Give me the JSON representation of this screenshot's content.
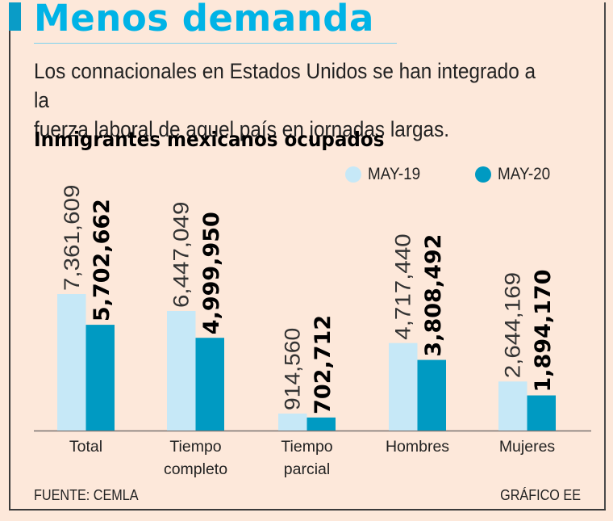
{
  "header": {
    "title": "Menos demanda",
    "subtitle_line1": "Los connacionales en Estados Unidos se han integrado a la",
    "subtitle_line2": "fuerza laboral de aquel país en jornadas largas."
  },
  "footer": {
    "source": "FUENTE: CEMLA",
    "credit": "GRÁFICO EE"
  },
  "colors": {
    "title": "#00b3e6",
    "accent": "#0a9cc7",
    "may19": "#c6e8f7",
    "may20": "#009ac2",
    "background": "#fde8da"
  },
  "chart_data": {
    "type": "bar",
    "title": "Inmigrantes mexicanos ocupados",
    "xlabel": "",
    "ylabel": "",
    "categories": [
      "Total",
      "Tiempo completo",
      "Tiempo parcial",
      "Hombres",
      "Mujeres"
    ],
    "category_lines": [
      [
        "Total"
      ],
      [
        "Tiempo",
        "completo"
      ],
      [
        "Tiempo",
        "parcial"
      ],
      [
        "Hombres"
      ],
      [
        "Mujeres"
      ]
    ],
    "series": [
      {
        "name": "MAY-19",
        "values": [
          7361609,
          6447049,
          914560,
          4717440,
          2644169
        ],
        "labels": [
          "7,361,609",
          "6,447,049",
          "914,560",
          "4,717,440",
          "2,644,169"
        ]
      },
      {
        "name": "MAY-20",
        "values": [
          5702662,
          4999950,
          702712,
          3808492,
          1894170
        ],
        "labels": [
          "5,702,662",
          "4,999,950",
          "702,712",
          "3,808,492",
          "1,894,170"
        ]
      }
    ],
    "legend_position": "top-right",
    "grid": false,
    "ylim": [
      0,
      8000000
    ]
  }
}
